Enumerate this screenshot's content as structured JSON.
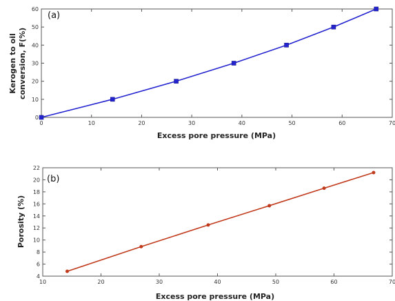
{
  "chart_data": [
    {
      "type": "line",
      "panel_label": "(a)",
      "xlabel": "Excess pore pressure (MPa)",
      "ylabel_lines": [
        "Kerogen to oil",
        "conversion, F(%)"
      ],
      "xlim": [
        0,
        70
      ],
      "ylim": [
        0,
        60
      ],
      "xticks": [
        0,
        10,
        20,
        30,
        40,
        50,
        60,
        70
      ],
      "yticks": [
        0,
        10,
        20,
        30,
        40,
        50,
        60
      ],
      "grid": false,
      "color": "#2323d0",
      "marker": "square",
      "series": [
        {
          "x": [
            0,
            14.2,
            26.9,
            38.4,
            48.9,
            58.3,
            66.8
          ],
          "y": [
            0,
            10,
            20,
            30,
            40,
            50,
            60
          ]
        }
      ]
    },
    {
      "type": "line",
      "panel_label": "(b)",
      "xlabel": "Excess pore pressure (MPa)",
      "ylabel_lines": [
        "Porosity (%)"
      ],
      "xlim": [
        10,
        70
      ],
      "ylim": [
        4,
        22
      ],
      "xticks": [
        10,
        20,
        30,
        40,
        50,
        60,
        70
      ],
      "yticks": [
        4,
        6,
        8,
        10,
        12,
        14,
        16,
        18,
        20,
        22
      ],
      "grid": false,
      "color": "#c0391b",
      "marker": "dot",
      "series": [
        {
          "x": [
            14.2,
            26.9,
            38.4,
            48.9,
            58.3,
            66.8
          ],
          "y": [
            4.8,
            8.9,
            12.5,
            15.7,
            18.6,
            21.2
          ]
        }
      ]
    }
  ]
}
